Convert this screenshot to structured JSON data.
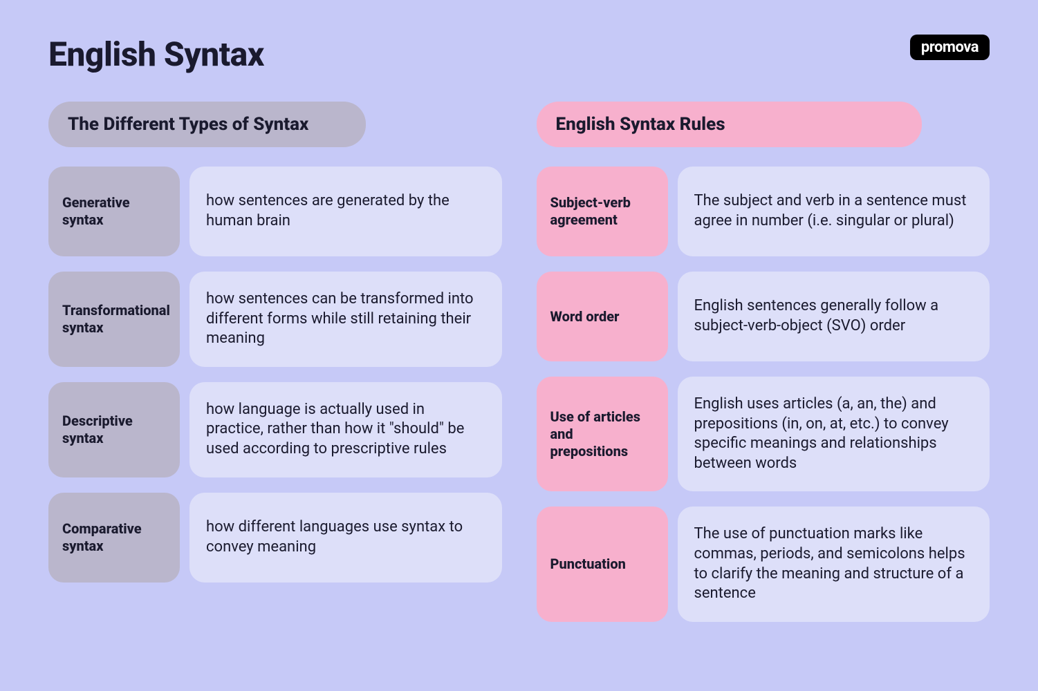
{
  "title": "English Syntax",
  "brand": "promova",
  "leftColumn": {
    "header": "The Different Types of Syntax",
    "items": [
      {
        "term": "Generative syntax",
        "def": "how sentences are generated by the human brain"
      },
      {
        "term": "Transformational syntax",
        "def": "how sentences can be transformed into different forms while still retaining their meaning"
      },
      {
        "term": "Descriptive syntax",
        "def": "how language is actually used in practice, rather than how it \"should\" be used according to prescriptive rules"
      },
      {
        "term": "Comparative syntax",
        "def": "how different languages use syntax to convey meaning"
      }
    ]
  },
  "rightColumn": {
    "header": "English Syntax Rules",
    "items": [
      {
        "term": "Subject-verb agreement",
        "def": "The subject and verb in a sentence must agree in number (i.e. singular or plural)"
      },
      {
        "term": "Word order",
        "def": "English sentences generally follow a subject-verb-object (SVO) order"
      },
      {
        "term": "Use of articles and prepositions",
        "def": "English uses articles (a, an, the) and prepositions (in, on, at, etc.) to convey specific meanings and relationships between words"
      },
      {
        "term": "Punctuation",
        "def": "The use of punctuation marks like commas, periods, and semicolons helps to clarify the meaning and structure of a sentence"
      }
    ]
  },
  "colors": {
    "background": "#c6c9f7",
    "leftAccent": "#bab6cc",
    "rightAccent": "#f7b0cd",
    "defBg": "#dddff9",
    "text": "#1a1a2e",
    "brandBg": "#000000",
    "brandText": "#ffffff"
  }
}
